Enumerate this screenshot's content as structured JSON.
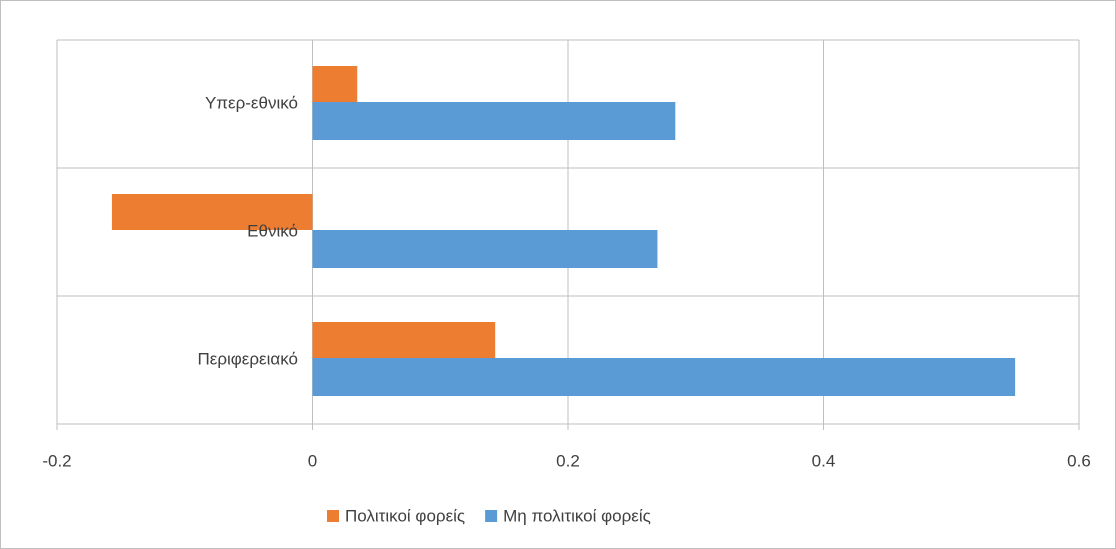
{
  "chart_data": {
    "type": "barh",
    "categories": [
      "Υπερ-εθνικό",
      "Εθνικό",
      "Περιφερειακό"
    ],
    "series": [
      {
        "name": "Πολιτικοί φορείς",
        "color": "#ed7d31",
        "values": [
          0.035,
          -0.157,
          0.143
        ]
      },
      {
        "name": "Μη πολιτικοί φορείς",
        "color": "#5b9bd5",
        "values": [
          0.284,
          0.27,
          0.55
        ]
      }
    ],
    "xlim": [
      -0.2,
      0.6
    ],
    "xticks": [
      -0.2,
      0,
      0.2,
      0.4,
      0.6
    ],
    "grid": true,
    "legend": "bottom"
  }
}
